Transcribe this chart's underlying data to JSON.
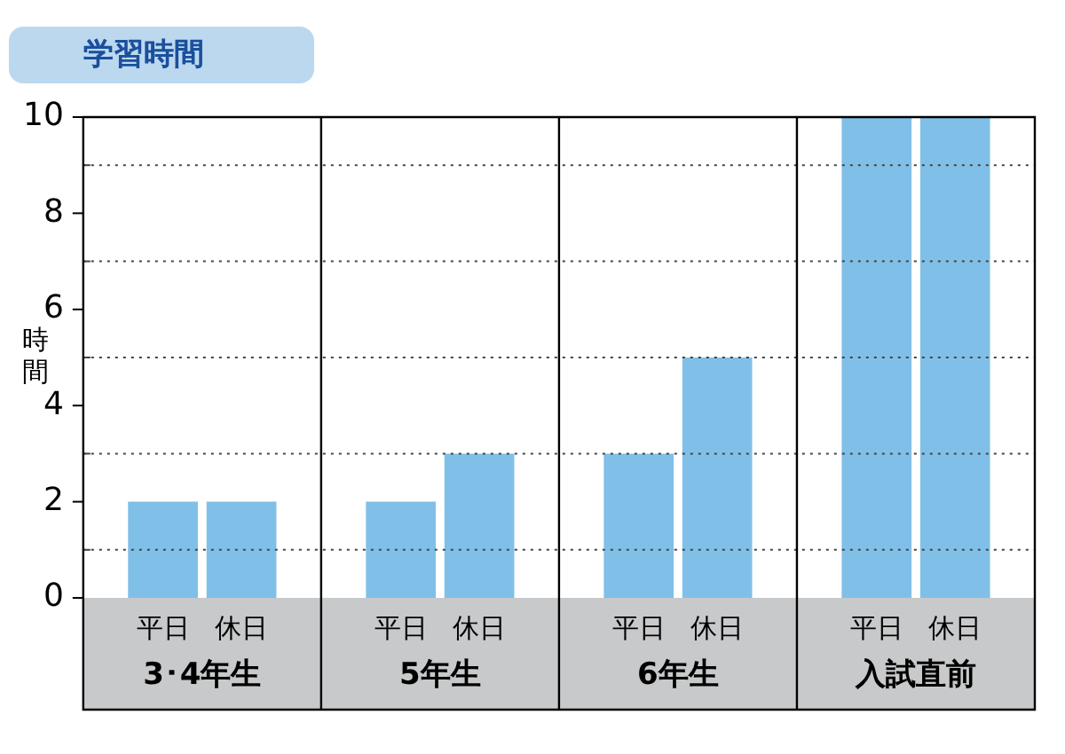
{
  "chart_data": {
    "type": "bar",
    "title": "学習時間",
    "ylabel": "時間",
    "categories": [
      "3･4年生",
      "5年生",
      "6年生",
      "入試直前"
    ],
    "series": [
      {
        "name": "平日",
        "color": "#80c0e8",
        "values": [
          2,
          2,
          3,
          10
        ]
      },
      {
        "name": "休日",
        "color": "#80c0e8",
        "values": [
          2,
          3,
          5,
          10
        ]
      }
    ],
    "ylim": [
      0,
      10
    ],
    "yticks": [
      0,
      {
        "value": 1,
        "label": null
      },
      2,
      {
        "value": 3,
        "label": null
      },
      4,
      {
        "value": 5,
        "label": null
      },
      6,
      {
        "value": 7,
        "label": null
      },
      8,
      {
        "value": 9,
        "label": null
      },
      10
    ],
    "grid": true,
    "legend": false
  }
}
